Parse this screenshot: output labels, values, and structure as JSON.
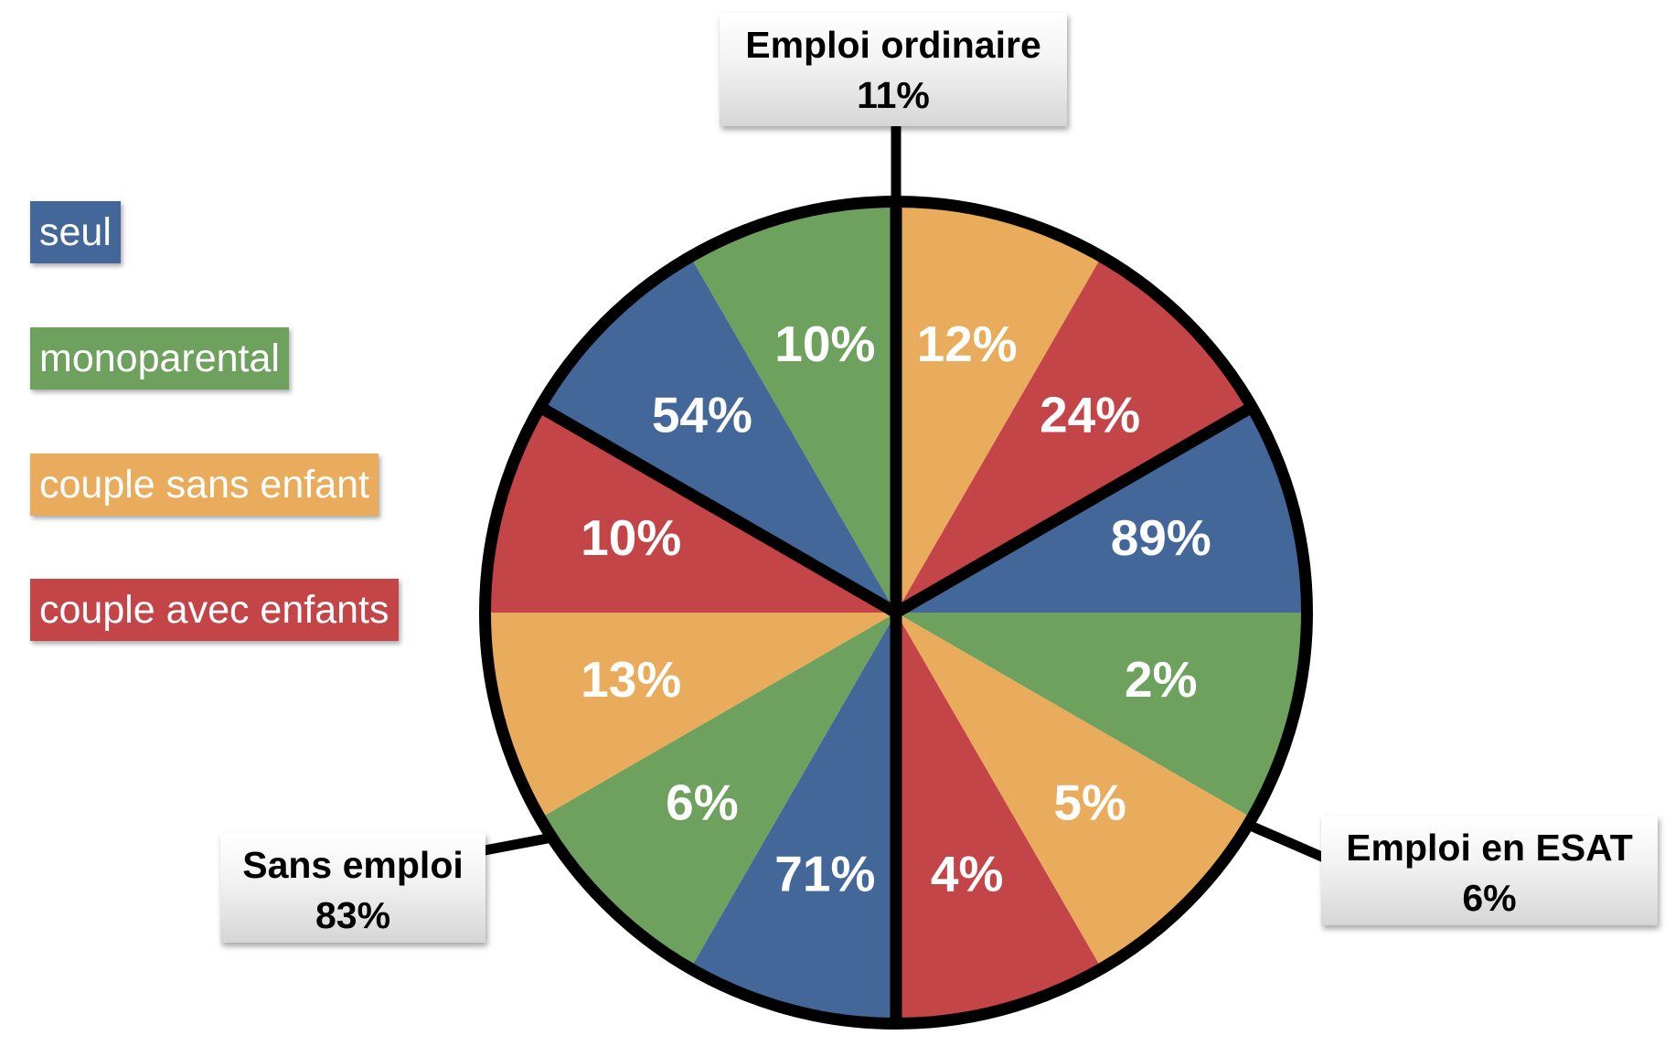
{
  "legend": [
    {
      "label": "seul",
      "color": "#44679A"
    },
    {
      "label": "monoparental",
      "color": "#6FA15E"
    },
    {
      "label": "couple sans enfant",
      "color": "#E9AC5C"
    },
    {
      "label": "couple avec enfants",
      "color": "#C34548"
    }
  ],
  "callouts": {
    "emploi_ordinaire": {
      "title": "Emploi ordinaire",
      "value": "11%"
    },
    "emploi_esat": {
      "title": "Emploi en ESAT",
      "value": "6%"
    },
    "sans_emploi": {
      "title": "Sans emploi",
      "value": "83%"
    }
  },
  "chart_data": {
    "type": "pie",
    "title": "",
    "groups": [
      {
        "name": "Emploi ordinaire",
        "share": "11%",
        "labels": [
          "12%",
          "24%"
        ],
        "series": [
          "couple sans enfant",
          "couple avec enfants"
        ]
      },
      {
        "name": "Emploi en ESAT",
        "share": "6%",
        "labels": [
          "89%",
          "2%",
          "5%",
          "4%"
        ],
        "series": [
          "seul",
          "monoparental",
          "couple sans enfant",
          "couple avec enfants"
        ]
      },
      {
        "name": "Sans emploi",
        "share": "83%",
        "labels": [
          "71%",
          "6%",
          "13%",
          "10%",
          "54%",
          "10%"
        ],
        "series": [
          "seul",
          "monoparental",
          "couple sans enfant",
          "couple avec enfants",
          "seul",
          "monoparental"
        ]
      }
    ],
    "slices": [
      {
        "label": "12%",
        "series": "couple sans enfant",
        "color": "#E9AC5C"
      },
      {
        "label": "24%",
        "series": "couple avec enfants",
        "color": "#C34548"
      },
      {
        "label": "89%",
        "series": "seul",
        "color": "#44679A"
      },
      {
        "label": "2%",
        "series": "monoparental",
        "color": "#6FA15E"
      },
      {
        "label": "5%",
        "series": "couple sans enfant",
        "color": "#E9AC5C"
      },
      {
        "label": "4%",
        "series": "couple avec enfants",
        "color": "#C34548"
      },
      {
        "label": "71%",
        "series": "seul",
        "color": "#44679A"
      },
      {
        "label": "6%",
        "series": "monoparental",
        "color": "#6FA15E"
      },
      {
        "label": "13%",
        "series": "couple sans enfant",
        "color": "#E9AC5C"
      },
      {
        "label": "10%",
        "series": "couple avec enfants",
        "color": "#C34548"
      },
      {
        "label": "54%",
        "series": "seul",
        "color": "#44679A"
      },
      {
        "label": "10%",
        "series": "monoparental",
        "color": "#6FA15E"
      }
    ]
  }
}
